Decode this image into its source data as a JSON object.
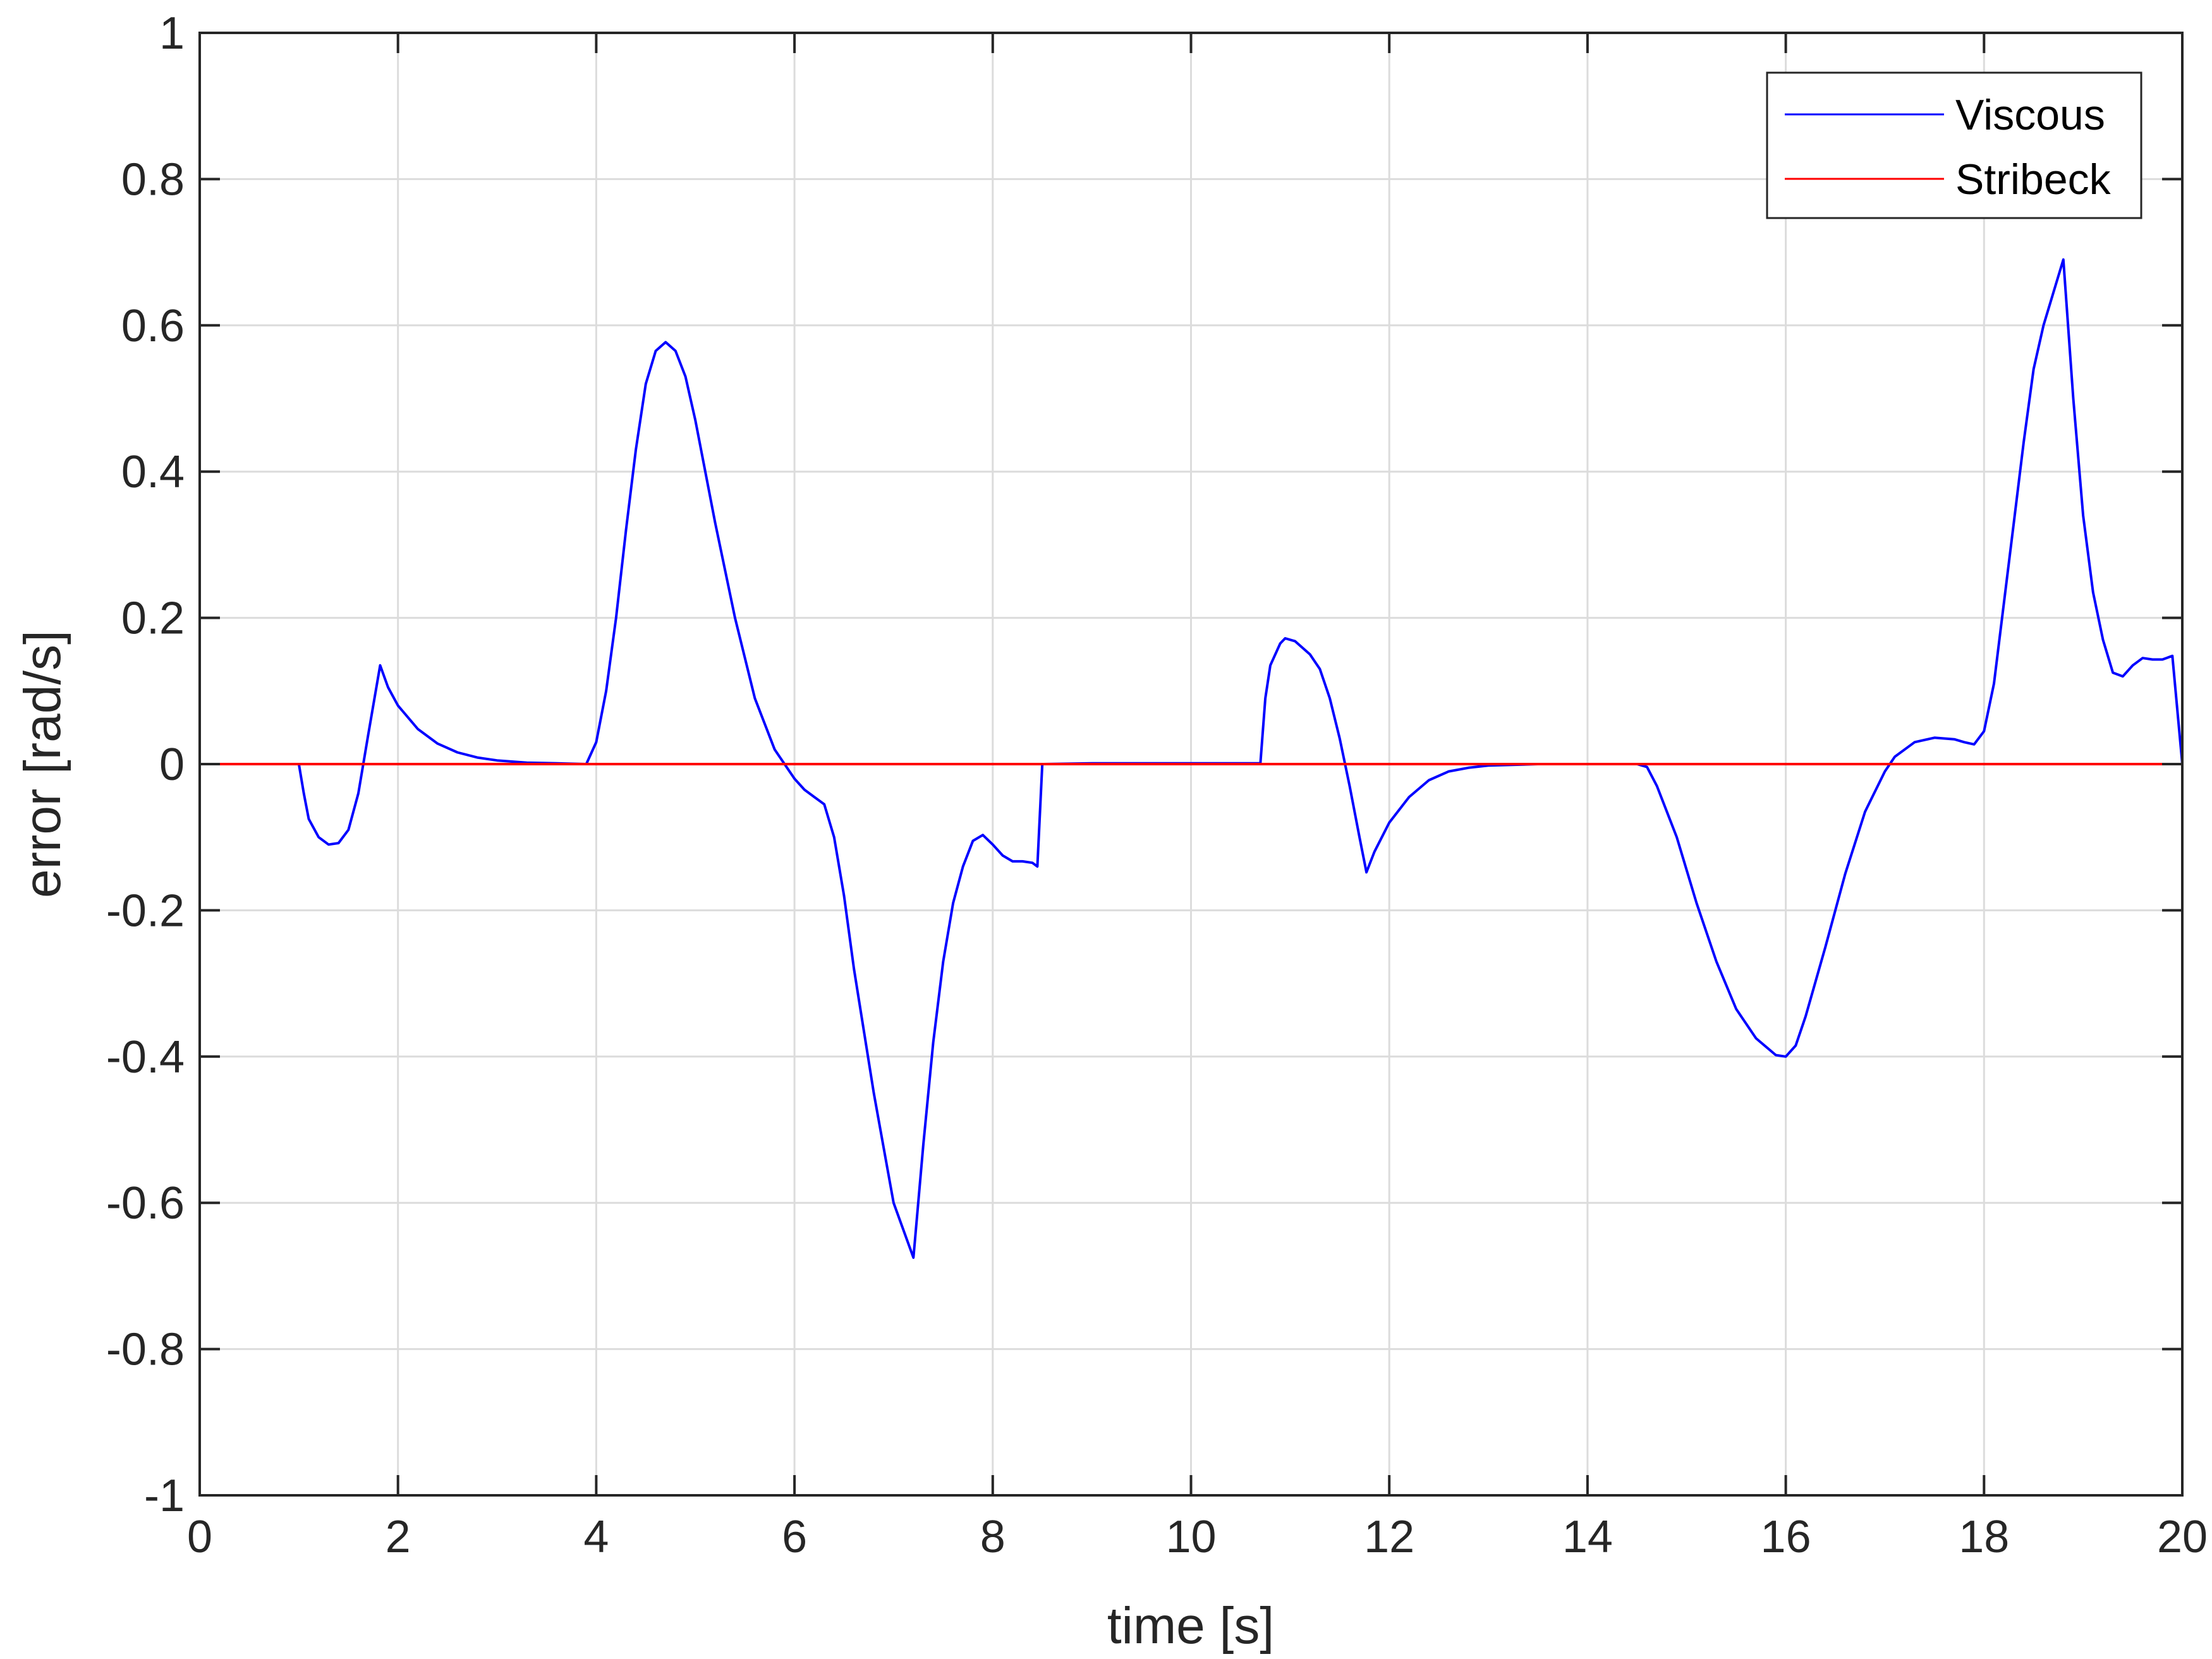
{
  "chart_data": {
    "type": "line",
    "xlabel": "time [s]",
    "ylabel": "error [rad/s]",
    "xlim": [
      0,
      20
    ],
    "ylim": [
      -1,
      1
    ],
    "xticks": [
      "0",
      "2",
      "4",
      "6",
      "8",
      "10",
      "12",
      "14",
      "16",
      "18",
      "20"
    ],
    "yticks": [
      "-1",
      "-0.8",
      "-0.6",
      "-0.4",
      "-0.2",
      "0",
      "0.2",
      "0.4",
      "0.6",
      "0.8",
      "1"
    ],
    "grid": true,
    "legend": "top-right",
    "series": [
      {
        "name": "Viscous",
        "color": "#0000ff",
        "points": [
          [
            1.0,
            0.0
          ],
          [
            1.05,
            -0.04
          ],
          [
            1.1,
            -0.075
          ],
          [
            1.2,
            -0.1
          ],
          [
            1.3,
            -0.11
          ],
          [
            1.4,
            -0.108
          ],
          [
            1.5,
            -0.09
          ],
          [
            1.6,
            -0.04
          ],
          [
            1.7,
            0.04
          ],
          [
            1.82,
            0.135
          ],
          [
            1.9,
            0.105
          ],
          [
            2.0,
            0.08
          ],
          [
            2.2,
            0.048
          ],
          [
            2.4,
            0.028
          ],
          [
            2.6,
            0.016
          ],
          [
            2.8,
            0.009
          ],
          [
            3.0,
            0.005
          ],
          [
            3.3,
            0.002
          ],
          [
            3.6,
            0.001
          ],
          [
            3.9,
            0.0
          ],
          [
            4.0,
            0.03
          ],
          [
            4.1,
            0.1
          ],
          [
            4.2,
            0.2
          ],
          [
            4.3,
            0.32
          ],
          [
            4.4,
            0.43
          ],
          [
            4.5,
            0.52
          ],
          [
            4.6,
            0.565
          ],
          [
            4.7,
            0.577
          ],
          [
            4.8,
            0.565
          ],
          [
            4.9,
            0.53
          ],
          [
            5.0,
            0.47
          ],
          [
            5.2,
            0.33
          ],
          [
            5.4,
            0.2
          ],
          [
            5.6,
            0.09
          ],
          [
            5.8,
            0.02
          ],
          [
            6.0,
            -0.02
          ],
          [
            6.1,
            -0.035
          ],
          [
            6.2,
            -0.045
          ],
          [
            6.3,
            -0.055
          ],
          [
            6.4,
            -0.1
          ],
          [
            6.5,
            -0.18
          ],
          [
            6.6,
            -0.28
          ],
          [
            6.8,
            -0.45
          ],
          [
            7.0,
            -0.6
          ],
          [
            7.2,
            -0.675
          ],
          [
            7.3,
            -0.52
          ],
          [
            7.4,
            -0.38
          ],
          [
            7.5,
            -0.27
          ],
          [
            7.6,
            -0.19
          ],
          [
            7.7,
            -0.14
          ],
          [
            7.8,
            -0.105
          ],
          [
            7.9,
            -0.097
          ],
          [
            8.0,
            -0.11
          ],
          [
            8.1,
            -0.125
          ],
          [
            8.2,
            -0.133
          ],
          [
            8.3,
            -0.133
          ],
          [
            8.4,
            -0.135
          ],
          [
            8.45,
            -0.14
          ],
          [
            8.5,
            0.0
          ],
          [
            9.0,
            0.001
          ],
          [
            9.5,
            0.001
          ],
          [
            10.0,
            0.001
          ],
          [
            10.5,
            0.001
          ],
          [
            10.7,
            0.001
          ],
          [
            10.75,
            0.09
          ],
          [
            10.8,
            0.135
          ],
          [
            10.9,
            0.165
          ],
          [
            10.95,
            0.172
          ],
          [
            11.05,
            0.168
          ],
          [
            11.2,
            0.15
          ],
          [
            11.3,
            0.13
          ],
          [
            11.4,
            0.09
          ],
          [
            11.5,
            0.035
          ],
          [
            11.6,
            -0.03
          ],
          [
            11.7,
            -0.1
          ],
          [
            11.77,
            -0.148
          ],
          [
            11.85,
            -0.12
          ],
          [
            12.0,
            -0.08
          ],
          [
            12.2,
            -0.045
          ],
          [
            12.4,
            -0.022
          ],
          [
            12.6,
            -0.01
          ],
          [
            12.8,
            -0.005
          ],
          [
            13.0,
            -0.002
          ],
          [
            13.5,
            0.0
          ],
          [
            14.0,
            0.0
          ],
          [
            14.5,
            0.0
          ],
          [
            14.6,
            -0.004
          ],
          [
            14.7,
            -0.03
          ],
          [
            14.9,
            -0.1
          ],
          [
            15.1,
            -0.19
          ],
          [
            15.3,
            -0.27
          ],
          [
            15.5,
            -0.335
          ],
          [
            15.7,
            -0.375
          ],
          [
            15.9,
            -0.398
          ],
          [
            16.0,
            -0.4
          ],
          [
            16.1,
            -0.385
          ],
          [
            16.2,
            -0.345
          ],
          [
            16.4,
            -0.25
          ],
          [
            16.6,
            -0.15
          ],
          [
            16.8,
            -0.065
          ],
          [
            17.0,
            -0.01
          ],
          [
            17.1,
            0.01
          ],
          [
            17.3,
            0.03
          ],
          [
            17.5,
            0.036
          ],
          [
            17.7,
            0.034
          ],
          [
            17.8,
            0.03
          ],
          [
            17.9,
            0.027
          ],
          [
            18.0,
            0.045
          ],
          [
            18.1,
            0.11
          ],
          [
            18.2,
            0.22
          ],
          [
            18.3,
            0.33
          ],
          [
            18.4,
            0.44
          ],
          [
            18.5,
            0.54
          ],
          [
            18.6,
            0.6
          ],
          [
            18.7,
            0.645
          ],
          [
            18.8,
            0.69
          ],
          [
            18.9,
            0.5
          ],
          [
            19.0,
            0.34
          ],
          [
            19.1,
            0.235
          ],
          [
            19.2,
            0.17
          ],
          [
            19.3,
            0.125
          ],
          [
            19.4,
            0.12
          ],
          [
            19.5,
            0.135
          ],
          [
            19.6,
            0.145
          ],
          [
            19.7,
            0.143
          ],
          [
            19.8,
            0.143
          ],
          [
            19.9,
            0.148
          ],
          [
            20.0,
            0.0
          ]
        ]
      },
      {
        "name": "Stribeck",
        "color": "#ff0000",
        "points": [
          [
            0,
            0.0
          ],
          [
            5,
            0.0
          ],
          [
            10,
            0.0
          ],
          [
            15,
            0.0
          ],
          [
            20,
            0.0
          ]
        ]
      }
    ]
  }
}
